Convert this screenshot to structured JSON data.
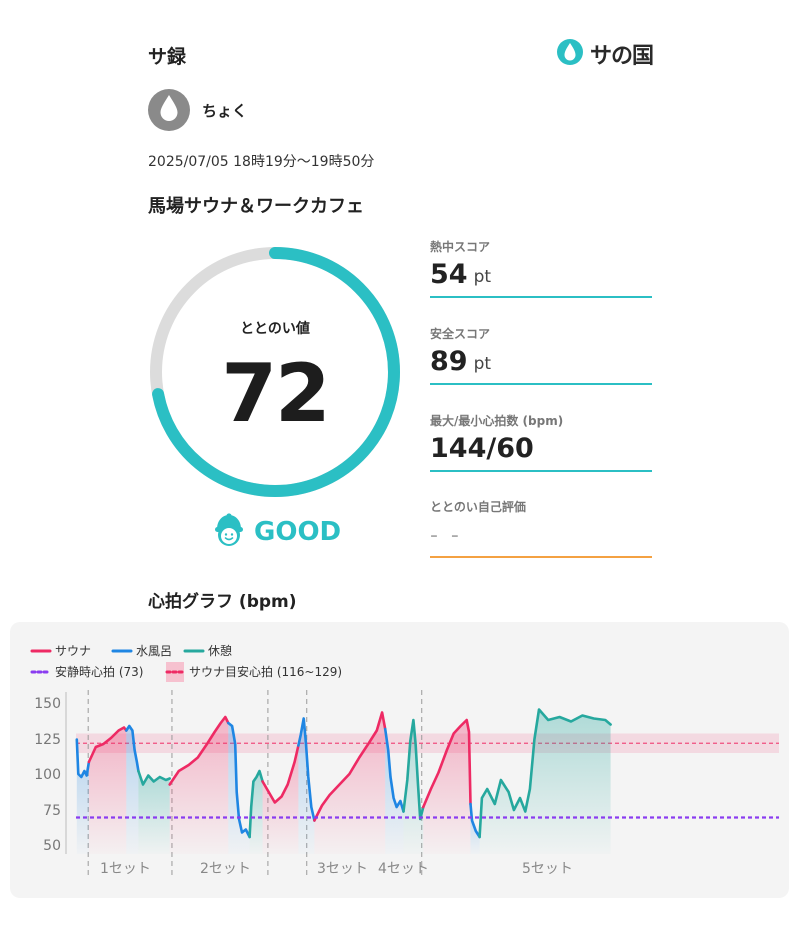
{
  "header": {
    "app_title": "サ録",
    "brand_name": "サの国",
    "brand_icon": "water-drop-icon"
  },
  "user": {
    "name": "ちょく",
    "avatar_icon": "water-drop-icon"
  },
  "session": {
    "datetime": "2025/07/05 18時19分～19時50分",
    "facility": "馬場サウナ＆ワークカフェ"
  },
  "totonoi": {
    "label": "ととのい値",
    "value": 72,
    "max": 100,
    "rating": "GOOD",
    "rating_icon": "smiling-face-cap-icon"
  },
  "colors": {
    "accent": "#2bbfc4",
    "sauna": "#ee2a64",
    "cold_bath": "#1f86e3",
    "rest": "#26a89e",
    "resting_hr": "#8a3cf0",
    "orange": "#f4a142"
  },
  "metrics": [
    {
      "label": "熱中スコア",
      "value": "54",
      "unit": "pt"
    },
    {
      "label": "安全スコア",
      "value": "89",
      "unit": "pt"
    },
    {
      "label": "最大/最小心拍数 (bpm)",
      "value": "144/60",
      "unit": ""
    },
    {
      "label": "ととのい自己評価",
      "value": "- -",
      "unit": ""
    }
  ],
  "graph_title": "心拍グラフ (bpm)",
  "chart_data": {
    "type": "line",
    "legend": {
      "sauna": "サウナ",
      "cold_bath": "水風呂",
      "rest": "休憩",
      "resting_hr": "安静時心拍 (73)",
      "sauna_target": "サウナ目安心拍 (116~129)"
    },
    "y_ticks": [
      "150",
      "125",
      "100",
      "75",
      "50"
    ],
    "ylim": [
      45,
      155
    ],
    "xlim": [
      0,
      91
    ],
    "resting_hr": 73,
    "sauna_target": [
      116,
      129
    ],
    "sets": [
      {
        "label": "1セット",
        "start": 1.6
      },
      {
        "label": "2セット",
        "start": 12.6
      },
      {
        "label": "3セット",
        "start": 25.2
      },
      {
        "label": "4セット",
        "start": 30.3
      },
      {
        "label": "5セット",
        "start": 45.4
      }
    ],
    "segments": [
      {
        "phase": "cold_bath",
        "points": [
          [
            0.1,
            125
          ],
          [
            0.3,
            102
          ],
          [
            0.7,
            100
          ],
          [
            1.1,
            104
          ],
          [
            1.4,
            101
          ],
          [
            1.7,
            110
          ]
        ]
      },
      {
        "phase": "sauna",
        "points": [
          [
            1.7,
            110
          ],
          [
            2.6,
            120
          ],
          [
            3.6,
            122
          ],
          [
            4.6,
            126
          ],
          [
            5.6,
            131
          ],
          [
            6.3,
            133
          ],
          [
            6.6,
            131
          ]
        ]
      },
      {
        "phase": "cold_bath",
        "points": [
          [
            6.6,
            131
          ],
          [
            7.0,
            134
          ],
          [
            7.4,
            131
          ],
          [
            7.7,
            118
          ],
          [
            8.0,
            110
          ],
          [
            8.2,
            104
          ]
        ]
      },
      {
        "phase": "rest",
        "points": [
          [
            8.2,
            104
          ],
          [
            8.8,
            95
          ],
          [
            9.5,
            101
          ],
          [
            10.2,
            97
          ],
          [
            11.0,
            100
          ],
          [
            11.8,
            98
          ],
          [
            12.3,
            99
          ]
        ]
      },
      {
        "phase": "sauna",
        "points": [
          [
            12.3,
            95
          ],
          [
            13.5,
            104
          ],
          [
            14.8,
            108
          ],
          [
            16.0,
            113
          ],
          [
            17.2,
            122
          ],
          [
            18.2,
            130
          ],
          [
            19.0,
            136
          ],
          [
            19.6,
            140
          ],
          [
            20.0,
            136
          ]
        ]
      },
      {
        "phase": "cold_bath",
        "points": [
          [
            20.0,
            136
          ],
          [
            20.5,
            134
          ],
          [
            20.9,
            122
          ],
          [
            21.1,
            90
          ],
          [
            21.4,
            72
          ],
          [
            21.8,
            63
          ],
          [
            22.3,
            65
          ],
          [
            22.8,
            60
          ]
        ]
      },
      {
        "phase": "rest",
        "points": [
          [
            22.8,
            60
          ],
          [
            23.0,
            80
          ],
          [
            23.3,
            97
          ],
          [
            23.7,
            100
          ],
          [
            24.1,
            104
          ],
          [
            24.5,
            97
          ]
        ]
      },
      {
        "phase": "sauna",
        "points": [
          [
            24.5,
            97
          ],
          [
            25.3,
            90
          ],
          [
            26.1,
            83
          ],
          [
            27.0,
            87
          ],
          [
            27.8,
            95
          ],
          [
            28.7,
            110
          ],
          [
            29.2,
            121
          ]
        ]
      },
      {
        "phase": "cold_bath",
        "points": [
          [
            29.2,
            121
          ],
          [
            29.5,
            128
          ],
          [
            29.9,
            139
          ],
          [
            30.2,
            122
          ],
          [
            30.5,
            100
          ],
          [
            30.9,
            80
          ],
          [
            31.3,
            71
          ]
        ]
      },
      {
        "phase": "sauna",
        "points": [
          [
            31.3,
            71
          ],
          [
            32.3,
            81
          ],
          [
            33.3,
            88
          ],
          [
            34.6,
            95
          ],
          [
            35.9,
            102
          ],
          [
            37.2,
            113
          ],
          [
            38.5,
            123
          ],
          [
            39.5,
            131
          ],
          [
            40.2,
            143
          ],
          [
            40.6,
            132
          ]
        ]
      },
      {
        "phase": "cold_bath",
        "points": [
          [
            40.6,
            132
          ],
          [
            41.0,
            118
          ],
          [
            41.3,
            100
          ],
          [
            41.7,
            86
          ],
          [
            42.1,
            80
          ],
          [
            42.6,
            84
          ],
          [
            43.0,
            77
          ]
        ]
      },
      {
        "phase": "rest",
        "points": [
          [
            43.0,
            77
          ],
          [
            43.5,
            98
          ],
          [
            43.9,
            124
          ],
          [
            44.3,
            138
          ],
          [
            44.6,
            122
          ],
          [
            44.9,
            96
          ],
          [
            45.2,
            72
          ],
          [
            45.6,
            80
          ]
        ]
      },
      {
        "phase": "sauna",
        "points": [
          [
            45.6,
            80
          ],
          [
            46.6,
            92
          ],
          [
            47.6,
            103
          ],
          [
            48.7,
            118
          ],
          [
            49.6,
            129
          ],
          [
            50.5,
            134
          ],
          [
            51.3,
            138
          ],
          [
            51.6,
            130
          ],
          [
            51.8,
            82
          ]
        ]
      },
      {
        "phase": "cold_bath",
        "points": [
          [
            51.8,
            82
          ],
          [
            52.0,
            71
          ],
          [
            52.5,
            64
          ],
          [
            53.0,
            60
          ]
        ]
      },
      {
        "phase": "rest",
        "points": [
          [
            53.0,
            60
          ],
          [
            53.3,
            86
          ],
          [
            54.0,
            92
          ],
          [
            55.0,
            82
          ],
          [
            55.8,
            98
          ],
          [
            56.8,
            90
          ],
          [
            57.5,
            78
          ],
          [
            58.3,
            86
          ],
          [
            59.0,
            77
          ],
          [
            59.6,
            92
          ],
          [
            60.2,
            125
          ],
          [
            60.8,
            145
          ],
          [
            62.0,
            138
          ],
          [
            63.5,
            140
          ],
          [
            65.0,
            137
          ],
          [
            66.5,
            141
          ],
          [
            68.0,
            139
          ],
          [
            69.5,
            138
          ],
          [
            70.2,
            135
          ]
        ]
      }
    ]
  }
}
